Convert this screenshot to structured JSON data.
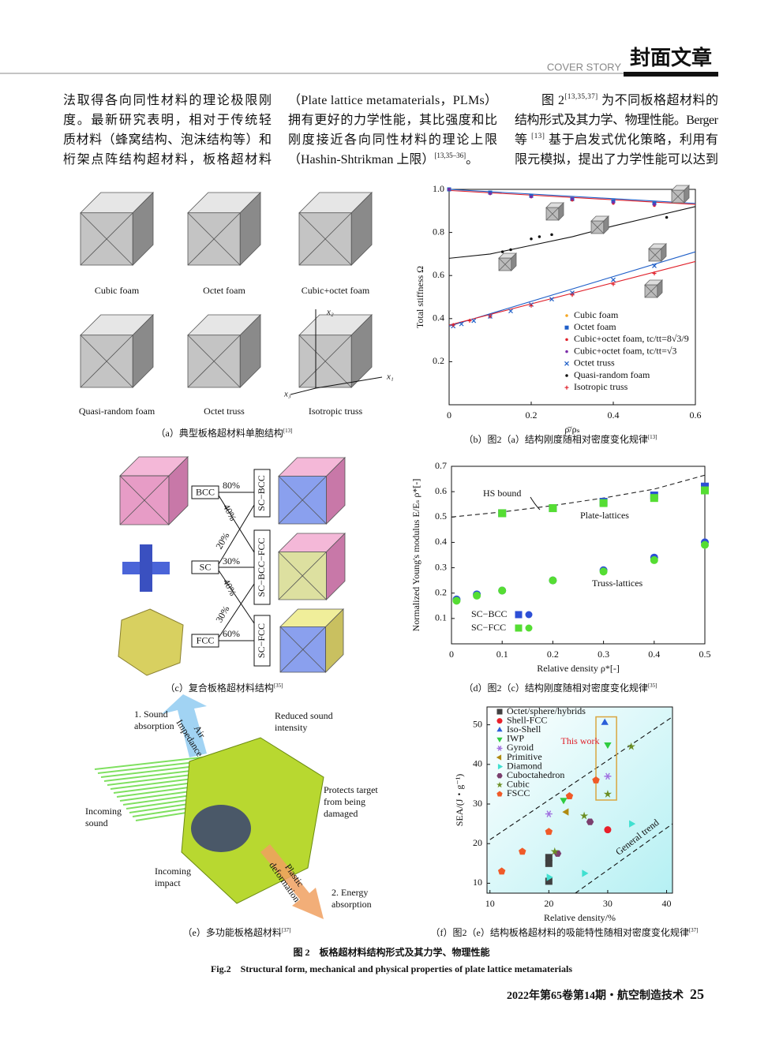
{
  "header": {
    "en": "COVER STORY",
    "cn": "封面文章"
  },
  "body": {
    "columns": [
      [
        [
          "法取得各向同性材料的理论极限刚"
        ],
        [
          "度。最新研究表明，相对于传统轻"
        ],
        [
          "质材料（蜂窝结构、泡沫结构等）和"
        ],
        [
          "桁架点阵结构超材料，板格超材料"
        ]
      ],
      [
        [
          "（Plate lattice metamaterials，PLMs）"
        ],
        [
          "拥有更好的力学性能，其比强度和比"
        ],
        [
          "刚度接近各向同性材料的理论上限"
        ],
        [
          "（Hashin-Shtrikman 上限）",
          {
            "sup": "[13,35–36]"
          },
          "。"
        ]
      ],
      [
        [
          "图 2",
          {
            "sup": "[13,35,37]"
          },
          " 为不同板格超材料的"
        ],
        [
          "结构形式及其力学、物理性能。Berger"
        ],
        [
          "等 ",
          {
            "sup": "[13]"
          },
          " 基于启发式优化策略，利用有"
        ],
        [
          "限元模拟，提出了力学性能可以达到"
        ]
      ]
    ]
  },
  "panels": {
    "a": {
      "labels": [
        "Cubic foam",
        "Octet foam",
        "Cubic+octet foam",
        "Quasi-random foam",
        "Octet truss",
        "Isotropic truss"
      ],
      "axes": [
        "x₂",
        "x₁",
        "x₃"
      ]
    },
    "c": {
      "inputs": [
        "BCC",
        "SC",
        "FCC"
      ],
      "outputs": [
        "SC−BCC",
        "SC−BCC−FCC",
        "SC−FCC"
      ],
      "percents": [
        "80%",
        "40%",
        "20%",
        "30%",
        "40%",
        "30%",
        "60%"
      ]
    },
    "e": {
      "labels": [
        [
          "1. Sound",
          "absorption"
        ],
        [
          "Air",
          "Impedance"
        ],
        [
          "Reduced sound",
          "intensity"
        ],
        [
          "Protects target",
          "from being",
          "damaged"
        ],
        [
          "Incoming",
          "sound"
        ],
        [
          "Incoming",
          "impact"
        ],
        [
          "Plastic",
          "deformation"
        ],
        [
          "2. Energy",
          "absorption"
        ]
      ]
    }
  },
  "chart_data": [
    {
      "type": "scatter",
      "xlabel": "ρ̄/ρₛ",
      "ylabel": "Total stiffness Ω",
      "xlim": [
        0,
        0.6
      ],
      "ylim": [
        0,
        1
      ],
      "xticks": [
        0,
        0.2,
        0.4,
        0.6
      ],
      "yticks": [
        0.2,
        0.4,
        0.6,
        0.8,
        {
          "value": 1,
          "label": "1.0"
        }
      ],
      "legend": "lower right",
      "series": [
        {
          "name": "Cubic foam",
          "color": "#f5a623",
          "marker": "dot",
          "x": [
            0,
            0.1,
            0.2,
            0.3,
            0.4,
            0.5
          ],
          "values": [
            1.0,
            0.98,
            0.965,
            0.95,
            0.94,
            0.93
          ]
        },
        {
          "name": "Octet foam",
          "color": "#1f5fc8",
          "marker": "square",
          "x": [
            0,
            0.1,
            0.2,
            0.3,
            0.4,
            0.5
          ],
          "values": [
            1.0,
            0.985,
            0.97,
            0.955,
            0.945,
            0.935
          ]
        },
        {
          "name": "Cubic+octet foam, tc/tt=8√3/9",
          "color": "#e0202a",
          "marker": "dot",
          "x": [
            0,
            0.1,
            0.2,
            0.3,
            0.4,
            0.5
          ],
          "values": [
            1.0,
            0.98,
            0.965,
            0.95,
            0.935,
            0.925
          ]
        },
        {
          "name": "Cubic+octet foam, tc/tt=√3",
          "color": "#7a2aa8",
          "marker": "dot",
          "x": [
            0,
            0.1,
            0.2,
            0.3,
            0.4,
            0.5
          ],
          "values": [
            1.0,
            0.98,
            0.965,
            0.955,
            0.94,
            0.93
          ]
        },
        {
          "name": "Octet truss",
          "color": "#1f5fc8",
          "marker": "x",
          "x": [
            0.01,
            0.03,
            0.06,
            0.1,
            0.15,
            0.2,
            0.25,
            0.3,
            0.4,
            0.5
          ],
          "values": [
            0.365,
            0.375,
            0.39,
            0.41,
            0.435,
            0.465,
            0.49,
            0.52,
            0.58,
            0.645
          ]
        },
        {
          "name": "Quasi-random foam",
          "color": "#111111",
          "marker": "dot",
          "x": [
            0.13,
            0.15,
            0.2,
            0.22,
            0.25,
            0.53
          ],
          "values": [
            0.71,
            0.72,
            0.77,
            0.78,
            0.79,
            0.87
          ]
        },
        {
          "name": "Isotropic truss",
          "color": "#e0202a",
          "marker": "plus",
          "x": [
            0.01,
            0.05,
            0.1,
            0.2,
            0.3,
            0.4,
            0.5
          ],
          "values": [
            0.37,
            0.39,
            0.41,
            0.46,
            0.51,
            0.56,
            0.61
          ]
        }
      ],
      "lines": [
        {
          "color": "#1f5fc8",
          "x": [
            0,
            0.6
          ],
          "values": [
            0.365,
            0.71
          ]
        },
        {
          "color": "#e0202a",
          "x": [
            0,
            0.6
          ],
          "values": [
            0.37,
            0.665
          ]
        },
        {
          "color": "#111111",
          "x": [
            0,
            0.1,
            0.2,
            0.3,
            0.4,
            0.5,
            0.6
          ],
          "values": [
            0.68,
            0.7,
            0.74,
            0.78,
            0.83,
            0.875,
            0.92
          ]
        },
        {
          "color": "#1f5fc8",
          "x": [
            0,
            0.6
          ],
          "values": [
            1.0,
            0.935
          ]
        },
        {
          "color": "#e0202a",
          "x": [
            0,
            0.6
          ],
          "values": [
            0.995,
            0.93
          ]
        }
      ]
    },
    {
      "type": "scatter",
      "xlabel": "Relative density ρ*[-]",
      "ylabel": "Normalized Young's modulus E/Eₛ ρ*[-]",
      "xlim": [
        0,
        0.5
      ],
      "ylim": [
        0,
        0.7
      ],
      "xticks": [
        0,
        0.1,
        0.2,
        0.3,
        0.4,
        0.5
      ],
      "yticks": [
        0.1,
        0.2,
        0.3,
        0.4,
        0.5,
        0.6,
        0.7
      ],
      "legend": "lower left",
      "series": [
        {
          "name": "SC−BCC",
          "color": "#2d4fd6",
          "groups": [
            {
              "marker": "square",
              "x": [
                0.1,
                0.2,
                0.3,
                0.4,
                0.5
              ],
              "values": [
                0.515,
                0.535,
                0.56,
                0.585,
                0.62
              ]
            },
            {
              "marker": "circle",
              "x": [
                0.01,
                0.05,
                0.1,
                0.2,
                0.3,
                0.4,
                0.5
              ],
              "values": [
                0.175,
                0.195,
                0.21,
                0.25,
                0.29,
                0.34,
                0.4
              ]
            }
          ]
        },
        {
          "name": "SC−FCC",
          "color": "#55dd33",
          "groups": [
            {
              "marker": "square",
              "x": [
                0.1,
                0.2,
                0.3,
                0.4,
                0.5
              ],
              "values": [
                0.515,
                0.535,
                0.555,
                0.575,
                0.605
              ]
            },
            {
              "marker": "circle",
              "x": [
                0.01,
                0.05,
                0.1,
                0.2,
                0.3,
                0.4,
                0.5
              ],
              "values": [
                0.17,
                0.19,
                0.21,
                0.25,
                0.285,
                0.33,
                0.39
              ]
            }
          ]
        }
      ],
      "lines": [
        {
          "color": "#222222",
          "dash": true,
          "x": [
            0,
            0.1,
            0.2,
            0.3,
            0.4,
            0.5
          ],
          "values": [
            0.5,
            0.52,
            0.545,
            0.575,
            0.61,
            0.665
          ]
        }
      ],
      "annotations": [
        "HS bound",
        "Plate-lattices",
        "Truss-lattices"
      ]
    },
    {
      "type": "scatter",
      "xlabel": "Relative density/%",
      "ylabel": "SEA/(J・g⁻¹)",
      "xlim": [
        9.5,
        41
      ],
      "ylim": [
        7.5,
        54.5
      ],
      "xticks": [
        10,
        20,
        30,
        40
      ],
      "yticks": [
        10,
        20,
        30,
        40,
        50
      ],
      "legend": "upper left",
      "series": [
        {
          "name": "Octet/sphere/hybrids",
          "color": "#404040",
          "marker": "square",
          "x": [
            20,
            20,
            20
          ],
          "values": [
            16.5,
            15,
            10.5
          ]
        },
        {
          "name": "Shell-FCC",
          "color": "#e8202a",
          "marker": "circle",
          "x": [
            30
          ],
          "values": [
            23.5
          ]
        },
        {
          "name": "Iso-Shell",
          "color": "#2b5fd9",
          "marker": "triangle-up",
          "x": [
            29.5
          ],
          "values": [
            50.5
          ]
        },
        {
          "name": "IWP",
          "color": "#2ecc40",
          "marker": "triangle-down",
          "x": [
            22.5,
            30
          ],
          "values": [
            31,
            45
          ]
        },
        {
          "name": "Gyroid",
          "color": "#a070e0",
          "marker": "asterisk",
          "x": [
            20,
            30
          ],
          "values": [
            27.5,
            37
          ]
        },
        {
          "name": "Primitive",
          "color": "#b08a10",
          "marker": "triangle-left",
          "x": [
            23
          ],
          "values": [
            28
          ]
        },
        {
          "name": "Diamond",
          "color": "#40e0d0",
          "marker": "triangle-right",
          "x": [
            20,
            26,
            34
          ],
          "values": [
            11.5,
            12.5,
            25
          ]
        },
        {
          "name": "Cuboctahedron",
          "color": "#7b3f6e",
          "marker": "hexagon",
          "x": [
            21.5,
            27
          ],
          "values": [
            17.5,
            25.5
          ]
        },
        {
          "name": "Cubic",
          "color": "#6b8e23",
          "marker": "star",
          "x": [
            21,
            26,
            34,
            30
          ],
          "values": [
            18,
            27,
            44.5,
            32.5
          ]
        },
        {
          "name": "FSCC",
          "color": "#f05a28",
          "marker": "pentagon",
          "x": [
            12,
            15.5,
            20,
            23.5,
            28
          ],
          "values": [
            13,
            18,
            23,
            32,
            36
          ]
        }
      ],
      "lines": [
        {
          "color": "#111111",
          "dash": true,
          "x": [
            10,
            41
          ],
          "values": [
            21,
            52
          ]
        },
        {
          "color": "#111111",
          "dash": true,
          "x": [
            24.5,
            41
          ],
          "values": [
            7.5,
            25
          ]
        }
      ],
      "box": {
        "x": [
          28,
          31.5
        ],
        "values": [
          31,
          52
        ]
      },
      "annotations": [
        "This work",
        "General trend"
      ]
    }
  ],
  "captions": [
    {
      "text": "（a）典型板格超材料单胞结构",
      "ref": "[13]"
    },
    {
      "text": "（b）图2（a）结构刚度随相对密度变化规律",
      "ref": "[13]"
    },
    {
      "text": "（c）复合板格超材料结构",
      "ref": "[35]"
    },
    {
      "text": "（d）图2（c）结构刚度随相对密度变化规律",
      "ref": "[35]"
    },
    {
      "text": "（e）多功能板格超材料",
      "ref": "[37]"
    },
    {
      "text": "（f）图2（e）结构板格超材料的吸能特性随相对密度变化规律",
      "ref": "[37]"
    }
  ],
  "figure_caption": {
    "cn": "图 2　板格超材料结构形式及其力学、物理性能",
    "en": "Fig.2　Structural form, mechanical and physical properties of plate lattice metamaterials"
  },
  "footer": {
    "journal": "2022年第65卷第14期・航空制造技术",
    "page": "25"
  }
}
